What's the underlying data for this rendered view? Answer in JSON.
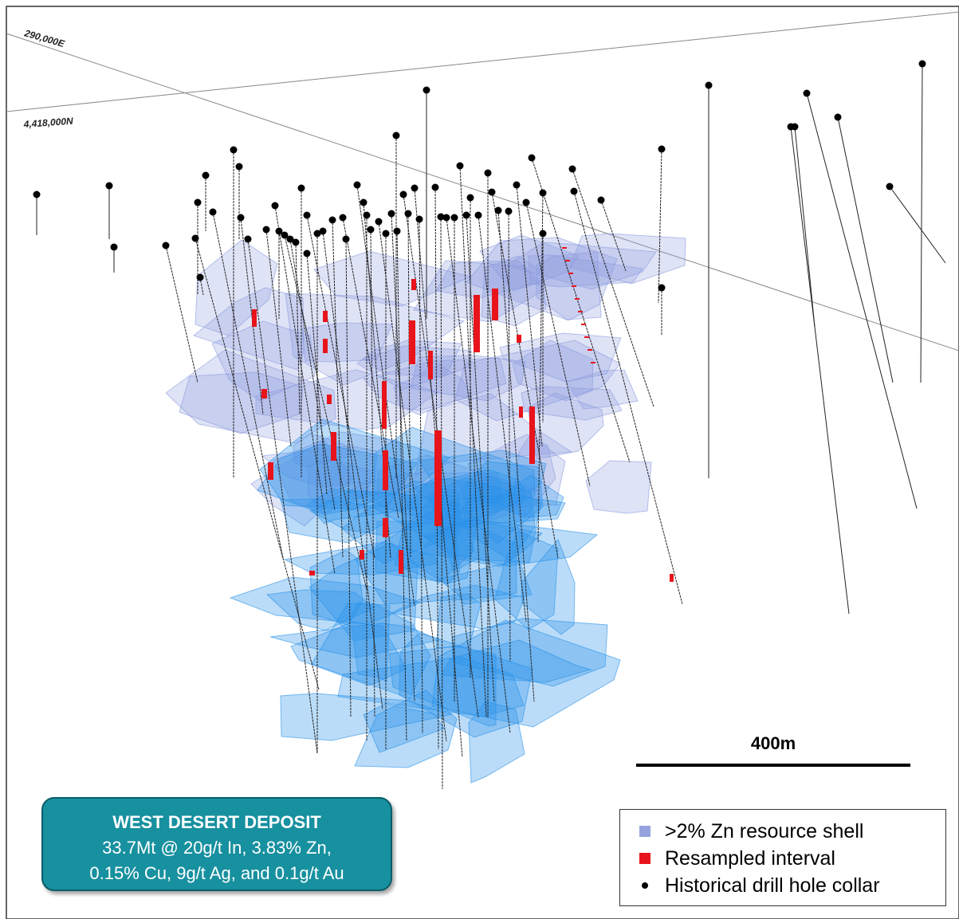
{
  "grid_labels": {
    "easting": "290,000E",
    "northing": "4,418,000N"
  },
  "scale_bar": {
    "label": "400m"
  },
  "info_box": {
    "title": "WEST DESERT DEPOSIT",
    "lines": [
      "33.7Mt @ 20g/t In, 3.83% Zn,",
      "0.15% Cu, 9g/t Ag, and 0.1g/t Au"
    ]
  },
  "legend": {
    "items": [
      ">2% Zn resource shell",
      "Resampled interval",
      "Historical drill hole collar"
    ]
  }
}
